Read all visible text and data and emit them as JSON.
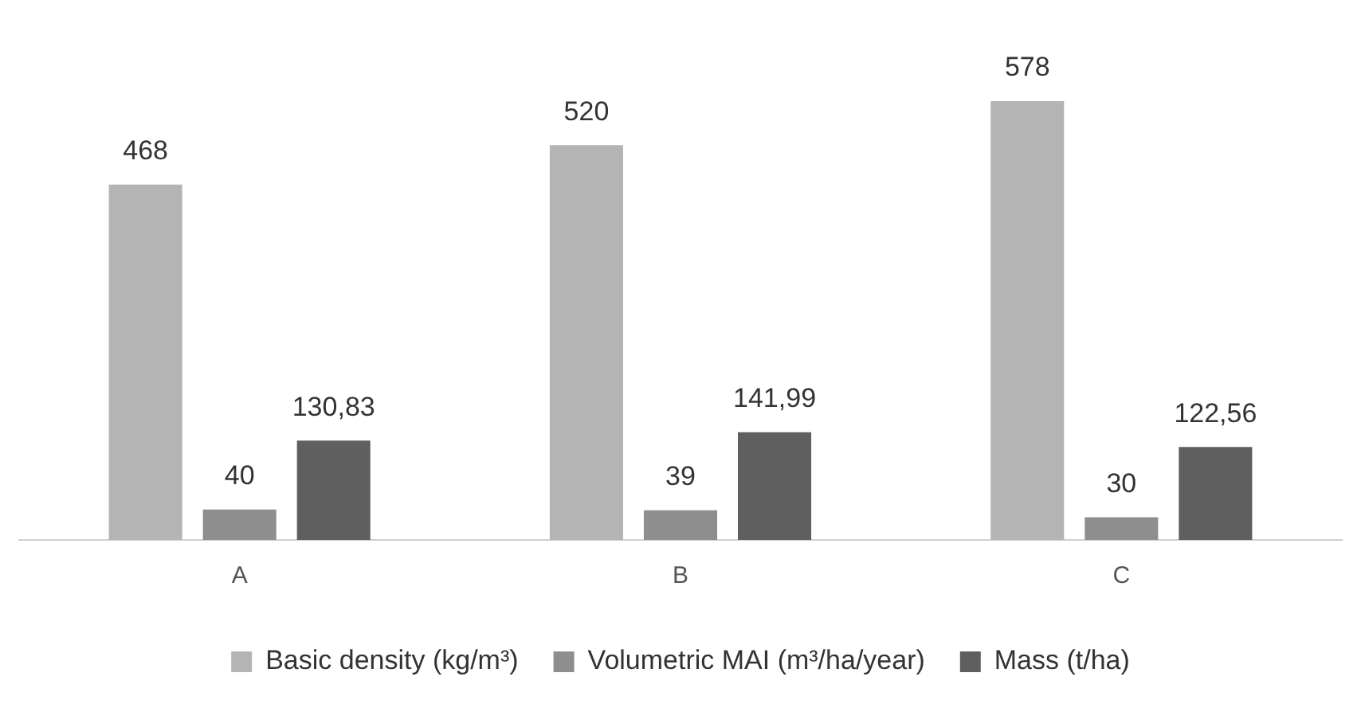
{
  "chart_data": {
    "type": "bar",
    "categories": [
      "A",
      "B",
      "C"
    ],
    "series": [
      {
        "name": "Basic density (kg/m³)",
        "color": "#b4b4b4",
        "values": [
          468,
          520,
          578
        ],
        "value_labels": [
          "468",
          "520",
          "578"
        ]
      },
      {
        "name": "Volumetric MAI (m³/ha/year)",
        "color": "#8e8e8e",
        "values": [
          40,
          39,
          30
        ],
        "value_labels": [
          "40",
          "39",
          "30"
        ]
      },
      {
        "name": "Mass (t/ha)",
        "color": "#5f5f5f",
        "values": [
          130.83,
          141.99,
          122.56
        ],
        "value_labels": [
          "130,83",
          "141,99",
          "122,56"
        ]
      }
    ],
    "grid": false,
    "legend": "bottom",
    "tick_labels": "x"
  }
}
